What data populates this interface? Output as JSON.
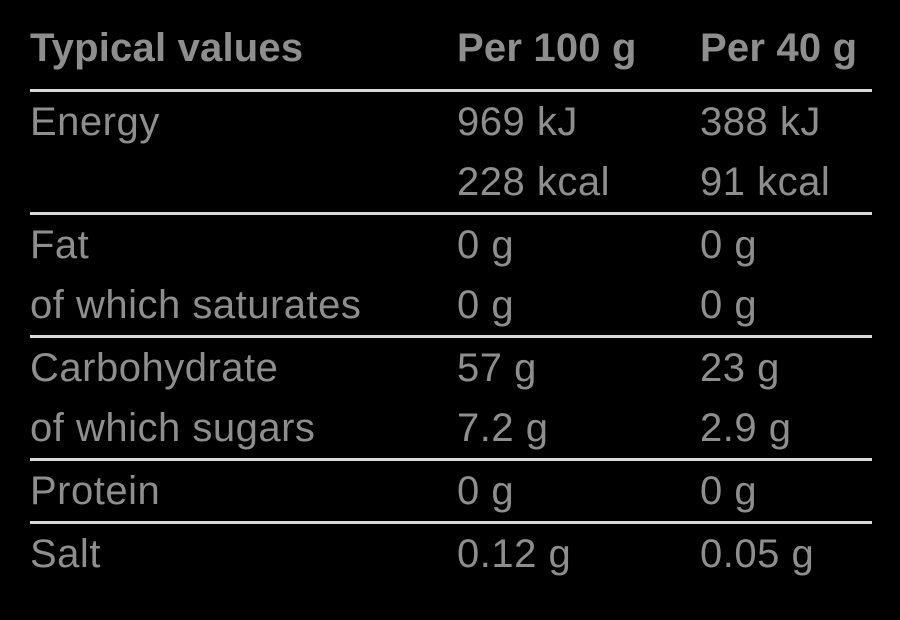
{
  "page": {
    "background_color": "#000000",
    "text_color": "#8E8E8E",
    "divider_color": "#D9D9D9"
  },
  "table": {
    "header": {
      "col1": "Typical values",
      "col2": "Per 100 g",
      "col3": "Per 40 g"
    },
    "rows": [
      {
        "label": "Energy",
        "per100": "969 kJ",
        "per40": "388 kJ"
      },
      {
        "label": "",
        "per100": "228 kcal",
        "per40": "91 kcal"
      },
      {
        "label": "Fat",
        "per100": "0 g",
        "per40": "0 g"
      },
      {
        "label": "of which saturates",
        "per100": "0 g",
        "per40": "0 g"
      },
      {
        "label": "Carbohydrate",
        "per100": "57 g",
        "per40": "23 g"
      },
      {
        "label": "of which sugars",
        "per100": "7.2 g",
        "per40": "2.9 g"
      },
      {
        "label": "Protein",
        "per100": "0 g",
        "per40": "0 g"
      },
      {
        "label": "Salt",
        "per100": "0.12 g",
        "per40": "0.05 g"
      }
    ]
  }
}
